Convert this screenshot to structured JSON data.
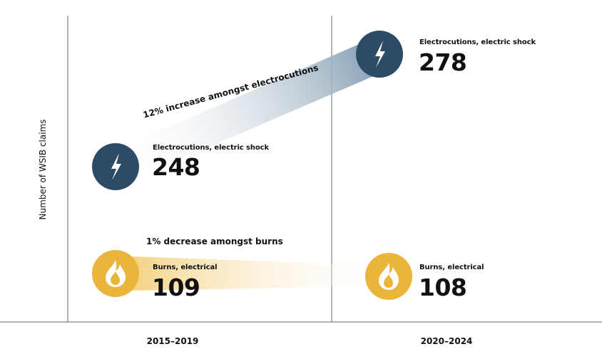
{
  "chart_data": {
    "type": "slope",
    "ylabel": "Number of WSIB claims",
    "categories": [
      "2015–2019",
      "2020–2024"
    ],
    "series": [
      {
        "name": "Electrocutions, electric shock",
        "values": [
          248,
          278
        ],
        "icon": "lightning-bolt-icon",
        "color": "#2d4a66",
        "band_color": "#8ea6ba",
        "annotation": "12% increase amongst electrocutions"
      },
      {
        "name": "Burns, electrical",
        "values": [
          109,
          108
        ],
        "icon": "flame-icon",
        "color": "#ebb53b",
        "band_color": "#f5d488",
        "annotation": "1% decrease amongst burns"
      }
    ],
    "grid": false
  }
}
